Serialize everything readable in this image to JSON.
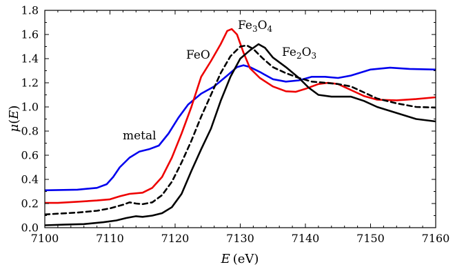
{
  "chart_data": {
    "type": "line",
    "xlabel": {
      "var": "E",
      "unit": "(eV)"
    },
    "ylabel": {
      "var": "μ",
      "arg": "E"
    },
    "xlim": [
      7100,
      7160
    ],
    "ylim": [
      0.0,
      1.8
    ],
    "xticks": [
      "7100",
      "7110",
      "7120",
      "7130",
      "7140",
      "7150",
      "7160"
    ],
    "yticks": [
      "0.0",
      "0.2",
      "0.4",
      "0.6",
      "0.8",
      "1.0",
      "1.2",
      "1.4",
      "1.6",
      "1.8"
    ],
    "grid": false,
    "legend": "none",
    "annotations": [
      {
        "text": "metal",
        "series": "metal"
      },
      {
        "text": "FeO",
        "series": "FeO"
      },
      {
        "base1": "Fe",
        "sub1": "3",
        "base2": "O",
        "sub2": "4",
        "series": "Fe3O4"
      },
      {
        "base1": "Fe",
        "sub1": "2",
        "base2": "O",
        "sub2": "3",
        "series": "Fe2O3"
      }
    ],
    "series": [
      {
        "id": "metal",
        "color": "#0000ee",
        "dash": "solid",
        "points": [
          [
            7100,
            0.31
          ],
          [
            7105,
            0.315
          ],
          [
            7108,
            0.33
          ],
          [
            7109.5,
            0.36
          ],
          [
            7110.5,
            0.42
          ],
          [
            7111.5,
            0.5
          ],
          [
            7113,
            0.58
          ],
          [
            7114.5,
            0.63
          ],
          [
            7116,
            0.65
          ],
          [
            7117.5,
            0.68
          ],
          [
            7119,
            0.78
          ],
          [
            7120.5,
            0.91
          ],
          [
            7122,
            1.02
          ],
          [
            7124,
            1.11
          ],
          [
            7126,
            1.17
          ],
          [
            7128,
            1.26
          ],
          [
            7129.5,
            1.33
          ],
          [
            7130.5,
            1.345
          ],
          [
            7131.5,
            1.33
          ],
          [
            7133,
            1.29
          ],
          [
            7135,
            1.23
          ],
          [
            7137,
            1.21
          ],
          [
            7139,
            1.22
          ],
          [
            7141,
            1.25
          ],
          [
            7143,
            1.25
          ],
          [
            7145,
            1.24
          ],
          [
            7147,
            1.26
          ],
          [
            7150,
            1.31
          ],
          [
            7153,
            1.325
          ],
          [
            7156,
            1.315
          ],
          [
            7160,
            1.31
          ]
        ]
      },
      {
        "id": "FeO",
        "color": "#ee0000",
        "dash": "solid",
        "points": [
          [
            7100,
            0.205
          ],
          [
            7102,
            0.205
          ],
          [
            7105,
            0.215
          ],
          [
            7108,
            0.225
          ],
          [
            7110,
            0.235
          ],
          [
            7111.5,
            0.26
          ],
          [
            7113,
            0.28
          ],
          [
            7115,
            0.29
          ],
          [
            7116.5,
            0.33
          ],
          [
            7118,
            0.42
          ],
          [
            7119.5,
            0.58
          ],
          [
            7121,
            0.78
          ],
          [
            7122.5,
            1.0
          ],
          [
            7124,
            1.25
          ],
          [
            7125.5,
            1.38
          ],
          [
            7127,
            1.52
          ],
          [
            7128,
            1.63
          ],
          [
            7128.7,
            1.645
          ],
          [
            7129.5,
            1.6
          ],
          [
            7130.5,
            1.45
          ],
          [
            7131.5,
            1.32
          ],
          [
            7133,
            1.24
          ],
          [
            7135,
            1.17
          ],
          [
            7137,
            1.13
          ],
          [
            7138.5,
            1.125
          ],
          [
            7140,
            1.15
          ],
          [
            7142,
            1.19
          ],
          [
            7143.5,
            1.2
          ],
          [
            7145,
            1.19
          ],
          [
            7147,
            1.14
          ],
          [
            7149,
            1.09
          ],
          [
            7151,
            1.06
          ],
          [
            7154,
            1.055
          ],
          [
            7157,
            1.065
          ],
          [
            7160,
            1.08
          ]
        ]
      },
      {
        "id": "Fe3O4",
        "color": "#000000",
        "dash": "dashed",
        "points": [
          [
            7100,
            0.11
          ],
          [
            7105,
            0.125
          ],
          [
            7108,
            0.14
          ],
          [
            7110,
            0.16
          ],
          [
            7112,
            0.19
          ],
          [
            7113,
            0.21
          ],
          [
            7114,
            0.2
          ],
          [
            7115,
            0.195
          ],
          [
            7116.5,
            0.21
          ],
          [
            7118,
            0.27
          ],
          [
            7119.5,
            0.38
          ],
          [
            7121,
            0.54
          ],
          [
            7122.5,
            0.72
          ],
          [
            7124,
            0.92
          ],
          [
            7125.5,
            1.1
          ],
          [
            7127,
            1.28
          ],
          [
            7128.5,
            1.42
          ],
          [
            7130,
            1.5
          ],
          [
            7131,
            1.51
          ],
          [
            7132,
            1.48
          ],
          [
            7133.5,
            1.4
          ],
          [
            7135,
            1.33
          ],
          [
            7137,
            1.28
          ],
          [
            7139,
            1.24
          ],
          [
            7141,
            1.21
          ],
          [
            7143,
            1.2
          ],
          [
            7145,
            1.19
          ],
          [
            7147,
            1.17
          ],
          [
            7149,
            1.12
          ],
          [
            7151,
            1.07
          ],
          [
            7154,
            1.03
          ],
          [
            7157,
            1.0
          ],
          [
            7160,
            0.995
          ]
        ]
      },
      {
        "id": "Fe2O3",
        "color": "#000000",
        "dash": "solid",
        "points": [
          [
            7100,
            0.02
          ],
          [
            7103,
            0.025
          ],
          [
            7106,
            0.03
          ],
          [
            7109,
            0.045
          ],
          [
            7111,
            0.06
          ],
          [
            7112.5,
            0.08
          ],
          [
            7114,
            0.095
          ],
          [
            7115,
            0.09
          ],
          [
            7116.5,
            0.1
          ],
          [
            7118,
            0.12
          ],
          [
            7119.5,
            0.17
          ],
          [
            7121,
            0.28
          ],
          [
            7122.5,
            0.47
          ],
          [
            7124,
            0.65
          ],
          [
            7125.5,
            0.82
          ],
          [
            7127,
            1.05
          ],
          [
            7128.5,
            1.25
          ],
          [
            7130,
            1.4
          ],
          [
            7131.5,
            1.47
          ],
          [
            7132.8,
            1.52
          ],
          [
            7133.8,
            1.49
          ],
          [
            7135,
            1.41
          ],
          [
            7137,
            1.33
          ],
          [
            7139,
            1.24
          ],
          [
            7140.5,
            1.16
          ],
          [
            7142,
            1.1
          ],
          [
            7144,
            1.085
          ],
          [
            7147,
            1.085
          ],
          [
            7149,
            1.05
          ],
          [
            7151,
            1.0
          ],
          [
            7154,
            0.95
          ],
          [
            7157,
            0.9
          ],
          [
            7160,
            0.88
          ]
        ]
      }
    ]
  }
}
